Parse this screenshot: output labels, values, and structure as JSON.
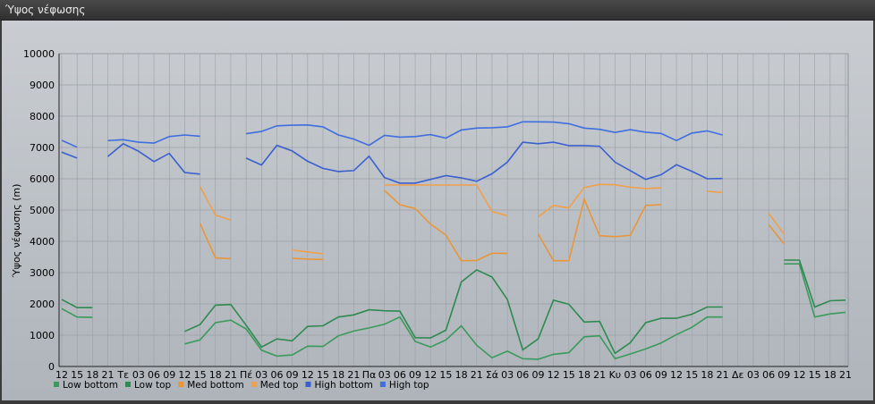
{
  "window": {
    "title": "Ύψος νέφωσης"
  },
  "chart_data": {
    "type": "line",
    "title": "Ύψος νέφωσης",
    "ylabel": "Ύψος νέφωσης (m)",
    "ylim": [
      0,
      10000
    ],
    "yticks": [
      0,
      1000,
      2000,
      3000,
      4000,
      5000,
      6000,
      7000,
      8000,
      9000,
      10000
    ],
    "grid": true,
    "legend_position": "bottom-left",
    "x_labels": [
      "12",
      "15",
      "18",
      "21",
      "Τε",
      "03",
      "06",
      "09",
      "12",
      "15",
      "18",
      "21",
      "Πέ",
      "03",
      "06",
      "09",
      "12",
      "15",
      "18",
      "21",
      "Πα",
      "03",
      "06",
      "09",
      "12",
      "15",
      "18",
      "21",
      "Σά",
      "03",
      "06",
      "09",
      "12",
      "15",
      "18",
      "21",
      "Κυ",
      "03",
      "06",
      "09",
      "12",
      "15",
      "18",
      "21",
      "Δε",
      "03",
      "06",
      "09",
      "12",
      "15",
      "18",
      "21"
    ],
    "series": [
      {
        "name": "Low bottom",
        "color": "#3a9a5c",
        "values": [
          1850,
          1580,
          1570,
          null,
          null,
          null,
          null,
          null,
          720,
          850,
          1400,
          1480,
          1200,
          520,
          330,
          370,
          650,
          640,
          980,
          1130,
          1230,
          1350,
          1580,
          800,
          620,
          850,
          1300,
          680,
          280,
          490,
          250,
          230,
          390,
          440,
          950,
          980,
          250,
          400,
          560,
          750,
          1020,
          1250,
          1580,
          1580,
          null,
          null,
          null,
          3280,
          3280,
          1580,
          1680,
          1730
        ]
      },
      {
        "name": "Low top",
        "color": "#2e8a50",
        "values": [
          2140,
          1880,
          1880,
          null,
          null,
          null,
          null,
          null,
          1120,
          1340,
          1960,
          1980,
          1320,
          620,
          880,
          820,
          1280,
          1300,
          1580,
          1650,
          1810,
          1780,
          1770,
          920,
          910,
          1160,
          2700,
          3090,
          2860,
          2140,
          530,
          880,
          2120,
          1990,
          1420,
          1440,
          420,
          760,
          1400,
          1540,
          1540,
          1670,
          1900,
          1900,
          null,
          null,
          null,
          3400,
          3400,
          1900,
          2100,
          2120
        ]
      },
      {
        "name": "Med bottom",
        "color": "#e8963a",
        "values": [
          null,
          null,
          null,
          null,
          null,
          null,
          null,
          null,
          null,
          4570,
          3470,
          3450,
          null,
          null,
          null,
          3460,
          3430,
          3420,
          null,
          null,
          null,
          5630,
          5170,
          5050,
          4550,
          4200,
          3380,
          3390,
          3620,
          3610,
          null,
          4240,
          3380,
          3380,
          5350,
          4180,
          4150,
          4190,
          5150,
          5170,
          null,
          null,
          null,
          null,
          null,
          null,
          4530,
          3920,
          null,
          null,
          null,
          null
        ]
      },
      {
        "name": "Med top",
        "color": "#f0a04a",
        "values": [
          null,
          null,
          null,
          null,
          null,
          null,
          null,
          null,
          null,
          5750,
          4840,
          4680,
          null,
          null,
          null,
          3720,
          3660,
          3600,
          null,
          null,
          null,
          5800,
          5800,
          5800,
          5800,
          5800,
          5800,
          5800,
          4950,
          4820,
          null,
          4780,
          5150,
          5070,
          5720,
          5820,
          5810,
          5730,
          5690,
          5710,
          null,
          null,
          5600,
          5560,
          null,
          null,
          4900,
          4230,
          null,
          null,
          null,
          null
        ]
      },
      {
        "name": "High bottom",
        "color": "#3a5fcf",
        "values": [
          6850,
          6660,
          null,
          6710,
          7120,
          6880,
          6550,
          6810,
          6200,
          6150,
          null,
          null,
          6660,
          6440,
          7070,
          6890,
          6560,
          6330,
          6230,
          6260,
          6720,
          6040,
          5860,
          5860,
          5980,
          6100,
          6030,
          5920,
          6160,
          6530,
          7170,
          7120,
          7170,
          7060,
          7060,
          7040,
          6530,
          6260,
          5980,
          6130,
          6450,
          6240,
          6000,
          6010,
          null,
          null,
          null,
          null,
          null,
          null,
          null,
          null
        ]
      },
      {
        "name": "High top",
        "color": "#3f6ee0",
        "values": [
          7230,
          7010,
          null,
          7220,
          7250,
          7170,
          7140,
          7350,
          7400,
          7360,
          null,
          null,
          7440,
          7510,
          7690,
          7710,
          7720,
          7660,
          7400,
          7270,
          7070,
          7390,
          7330,
          7350,
          7410,
          7300,
          7560,
          7620,
          7630,
          7660,
          7820,
          7820,
          7810,
          7760,
          7620,
          7580,
          7480,
          7570,
          7490,
          7450,
          7220,
          7460,
          7530,
          7400,
          null,
          null,
          null,
          null,
          null,
          null,
          null,
          null
        ]
      }
    ]
  }
}
